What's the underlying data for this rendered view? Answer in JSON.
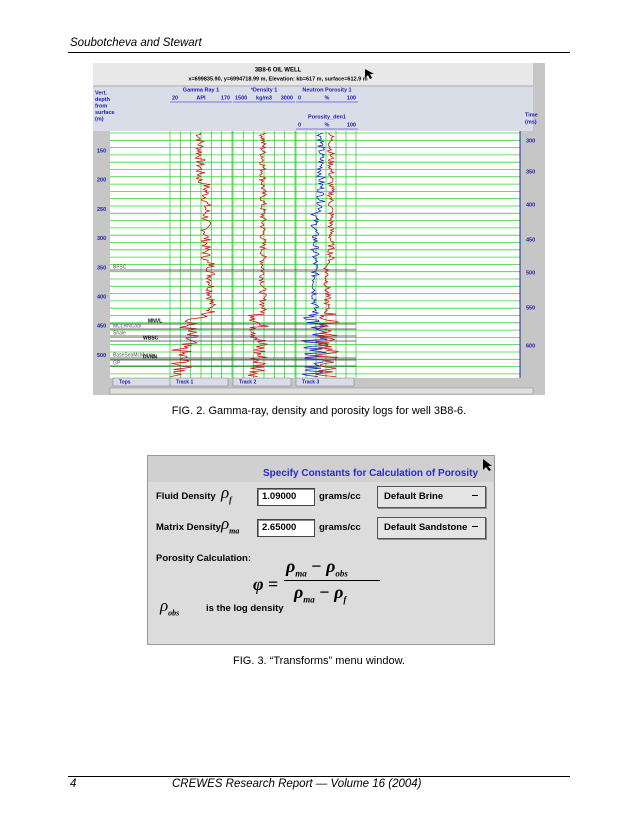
{
  "header": {
    "running_title": "Soubotcheva and Stewart"
  },
  "figure2": {
    "title": "3B8-6 OIL WELL",
    "location": "x=699835.90, y=6994718.99 m, Elevation: kb=617 m, surface=612.9 m",
    "depth_axis_label": [
      "Vert.",
      "depth",
      "from",
      "surface",
      "(m)"
    ],
    "depth_ticks": [
      150,
      200,
      250,
      300,
      350,
      400,
      450,
      500
    ],
    "time_axis_label": [
      "Time",
      "(ms)"
    ],
    "time_ticks": [
      300,
      350,
      400,
      450,
      500,
      550,
      600
    ],
    "tracks": [
      {
        "name": "Gamma Ray 1",
        "min": "20",
        "unit": "API",
        "max": "170"
      },
      {
        "name": "*Density 1",
        "min": "1500",
        "unit": "kg/m3",
        "max": "3000"
      },
      {
        "name": "Neutron Porosity 1",
        "min": "0",
        "unit": "%",
        "max": "100"
      },
      {
        "name": "Porosity_den1",
        "min": "0",
        "unit": "%",
        "max": "100"
      }
    ],
    "formation_tops": [
      "BFSC",
      "MNVL",
      "MCLRNCoal",
      "Shale",
      "WBSC",
      "BaseSeaMcMurray",
      "DVNN",
      "GP"
    ],
    "tabs": [
      "Tops",
      "Track 1",
      "Track 2",
      "Track 3"
    ],
    "caption": "FIG. 2. Gamma-ray, density and porosity logs for well 3B8-6."
  },
  "figure3": {
    "title": "Specify Constants for Calculation of Porosity",
    "fluid": {
      "label": "Fluid Density",
      "symbol": "ρ",
      "sub": "f",
      "value": "1.09000",
      "unit": "grams/cc",
      "preset": "Default Brine"
    },
    "matrix": {
      "label": "Matrix Density",
      "symbol": "ρ",
      "sub": "ma",
      "value": "2.65000",
      "unit": "grams/cc",
      "preset": "Default Sandstone"
    },
    "calc_label": "Porosity Calculation:",
    "formula": {
      "lhs": "φ",
      "equals": "=",
      "minus": "−",
      "num_a": {
        "symbol": "ρ",
        "sub": "ma"
      },
      "num_b": {
        "symbol": "ρ",
        "sub": "obs"
      },
      "den_a": {
        "symbol": "ρ",
        "sub": "ma"
      },
      "den_b": {
        "symbol": "ρ",
        "sub": "f"
      }
    },
    "note": {
      "symbol": "ρ",
      "sub": "obs",
      "text": "is the log density"
    },
    "caption": "FIG. 3. “Transforms” menu window."
  },
  "footer": {
    "page_number": "4",
    "citation": "CREWES Research Report — Volume 16 (2004)"
  }
}
